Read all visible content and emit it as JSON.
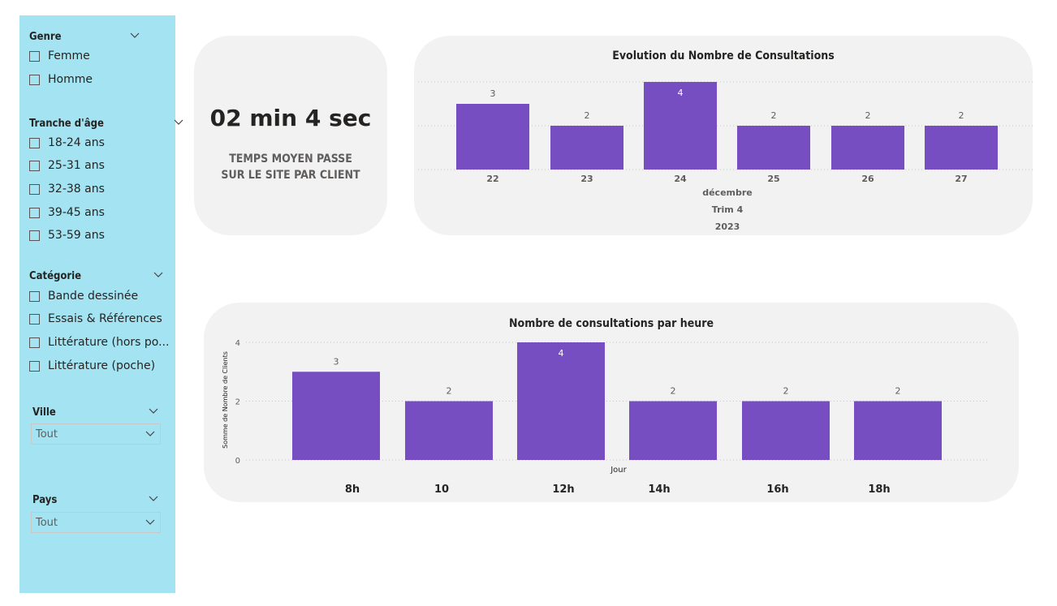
{
  "sidebar": {
    "genre": {
      "title": "Genre",
      "options": [
        "Femme",
        "Homme"
      ]
    },
    "age": {
      "title": "Tranche d'âge",
      "options": [
        "18-24 ans",
        "25-31 ans",
        "32-38 ans",
        "39-45 ans",
        "53-59 ans"
      ]
    },
    "category": {
      "title": "Catégorie",
      "options": [
        "Bande dessinée",
        "Essais & Références",
        "Littérature (hors po...",
        "Littérature (poche)"
      ]
    },
    "city": {
      "title": "Ville",
      "value": "Tout"
    },
    "country": {
      "title": "Pays",
      "value": "Tout"
    }
  },
  "kpi": {
    "value": "02 min 4 sec",
    "label_line1": "TEMPS MOYEN PASSE",
    "label_line2": "SUR LE SITE PAR CLIENT"
  },
  "colors": {
    "bar": "#764ec1",
    "sidebar": "#a4e4f2",
    "card": "#f2f2f2"
  },
  "chart_data": [
    {
      "type": "bar",
      "title": "Evolution du Nombre de Consultations",
      "categories": [
        "22",
        "23",
        "24",
        "25",
        "26",
        "27"
      ],
      "values": [
        3,
        2,
        4,
        2,
        2,
        2
      ],
      "ylim": [
        0,
        4
      ],
      "yticks": [
        0,
        2,
        4
      ],
      "x_hierarchy": [
        "décembre",
        "Trim 4",
        "2023"
      ],
      "grid": true
    },
    {
      "type": "bar",
      "title": "Nombre de consultations par heure",
      "categories": [
        "8h",
        "10",
        "12h",
        "14h",
        "16h",
        "18h"
      ],
      "values": [
        3,
        2,
        4,
        2,
        2,
        2
      ],
      "ylim": [
        0,
        4
      ],
      "yticks": [
        0,
        2,
        4
      ],
      "ylabel": "Somme de Nombre de Clients",
      "xlabel": "Jour",
      "grid": true
    }
  ]
}
